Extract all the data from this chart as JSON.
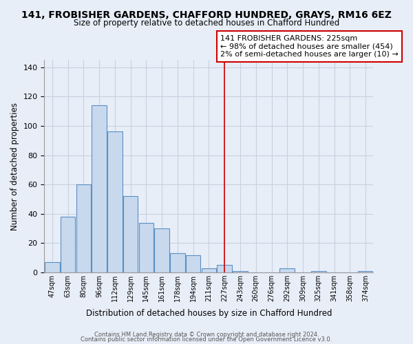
{
  "title": "141, FROBISHER GARDENS, CHAFFORD HUNDRED, GRAYS, RM16 6EZ",
  "subtitle": "Size of property relative to detached houses in Chafford Hundred",
  "xlabel": "Distribution of detached houses by size in Chafford Hundred",
  "ylabel": "Number of detached properties",
  "footer_line1": "Contains HM Land Registry data © Crown copyright and database right 2024.",
  "footer_line2": "Contains public sector information licensed under the Open Government Licence v3.0.",
  "bar_labels": [
    "47sqm",
    "63sqm",
    "80sqm",
    "96sqm",
    "112sqm",
    "129sqm",
    "145sqm",
    "161sqm",
    "178sqm",
    "194sqm",
    "211sqm",
    "227sqm",
    "243sqm",
    "260sqm",
    "276sqm",
    "292sqm",
    "309sqm",
    "325sqm",
    "341sqm",
    "358sqm",
    "374sqm"
  ],
  "bar_values": [
    7,
    38,
    60,
    114,
    96,
    52,
    34,
    30,
    13,
    12,
    3,
    5,
    1,
    0,
    0,
    3,
    0,
    1,
    0,
    0,
    1
  ],
  "bar_color": "#c8d9ee",
  "bar_edge_color": "#5a8fc2",
  "vline_x_index": 11,
  "vline_color": "#cc0000",
  "annotation_title": "141 FROBISHER GARDENS: 225sqm",
  "annotation_line1": "← 98% of detached houses are smaller (454)",
  "annotation_line2": "2% of semi-detached houses are larger (10) →",
  "annotation_box_color": "#ffffff",
  "annotation_box_edge": "#cc0000",
  "ylim": [
    0,
    145
  ],
  "background_color": "#e8eef8",
  "grid_color": "#c8d0e0",
  "axes_bg_color": "#e8eef8"
}
